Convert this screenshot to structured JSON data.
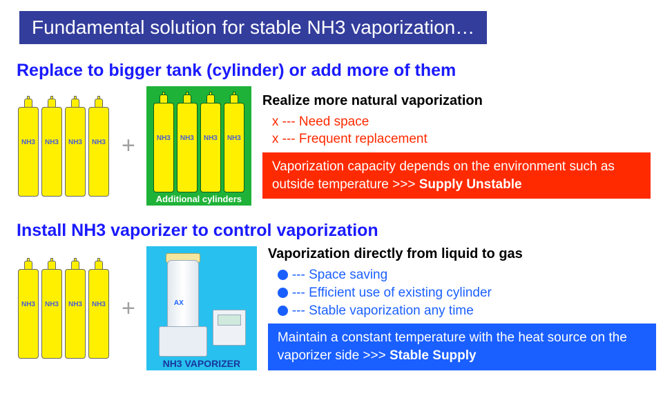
{
  "title": "Fundamental solution for stable NH3 vaporization…",
  "colors": {
    "banner_bg": "#333d9c",
    "heading": "#1a1aff",
    "cylinder_fill": "#fff000",
    "cylinder_label": "#4a5fd0",
    "green_box": "#1fb238",
    "cyan_box": "#28c0ef",
    "red": "#ff2a00",
    "blue": "#1a5fff",
    "white": "#ffffff"
  },
  "cylinder_label": "NH3",
  "plus": "+",
  "section1": {
    "heading": "Replace to bigger tank (cylinder) or add more of them",
    "green_caption": "Additional cylinders",
    "sub_head": "Realize more natural vaporization",
    "cons": [
      "x --- Need space",
      "x --- Frequent replacement"
    ],
    "callout_prefix": "Vaporization capacity depends on the environment such as outside temperature >>> ",
    "callout_bold": "Supply Unstable"
  },
  "section2": {
    "heading": "Install NH3 vaporizer to control vaporization",
    "cyan_caption": "NH3 VAPORIZER",
    "vap_badge": "AX",
    "sub_head": "Vaporization directly from liquid to gas",
    "pros": [
      "--- Space saving",
      "--- Efficient use of existing cylinder",
      "--- Stable vaporization any time"
    ],
    "callout_prefix": "Maintain a constant temperature with the heat source on the vaporizer side >>> ",
    "callout_bold": "Stable Supply"
  },
  "cylinders_per_group": 4
}
